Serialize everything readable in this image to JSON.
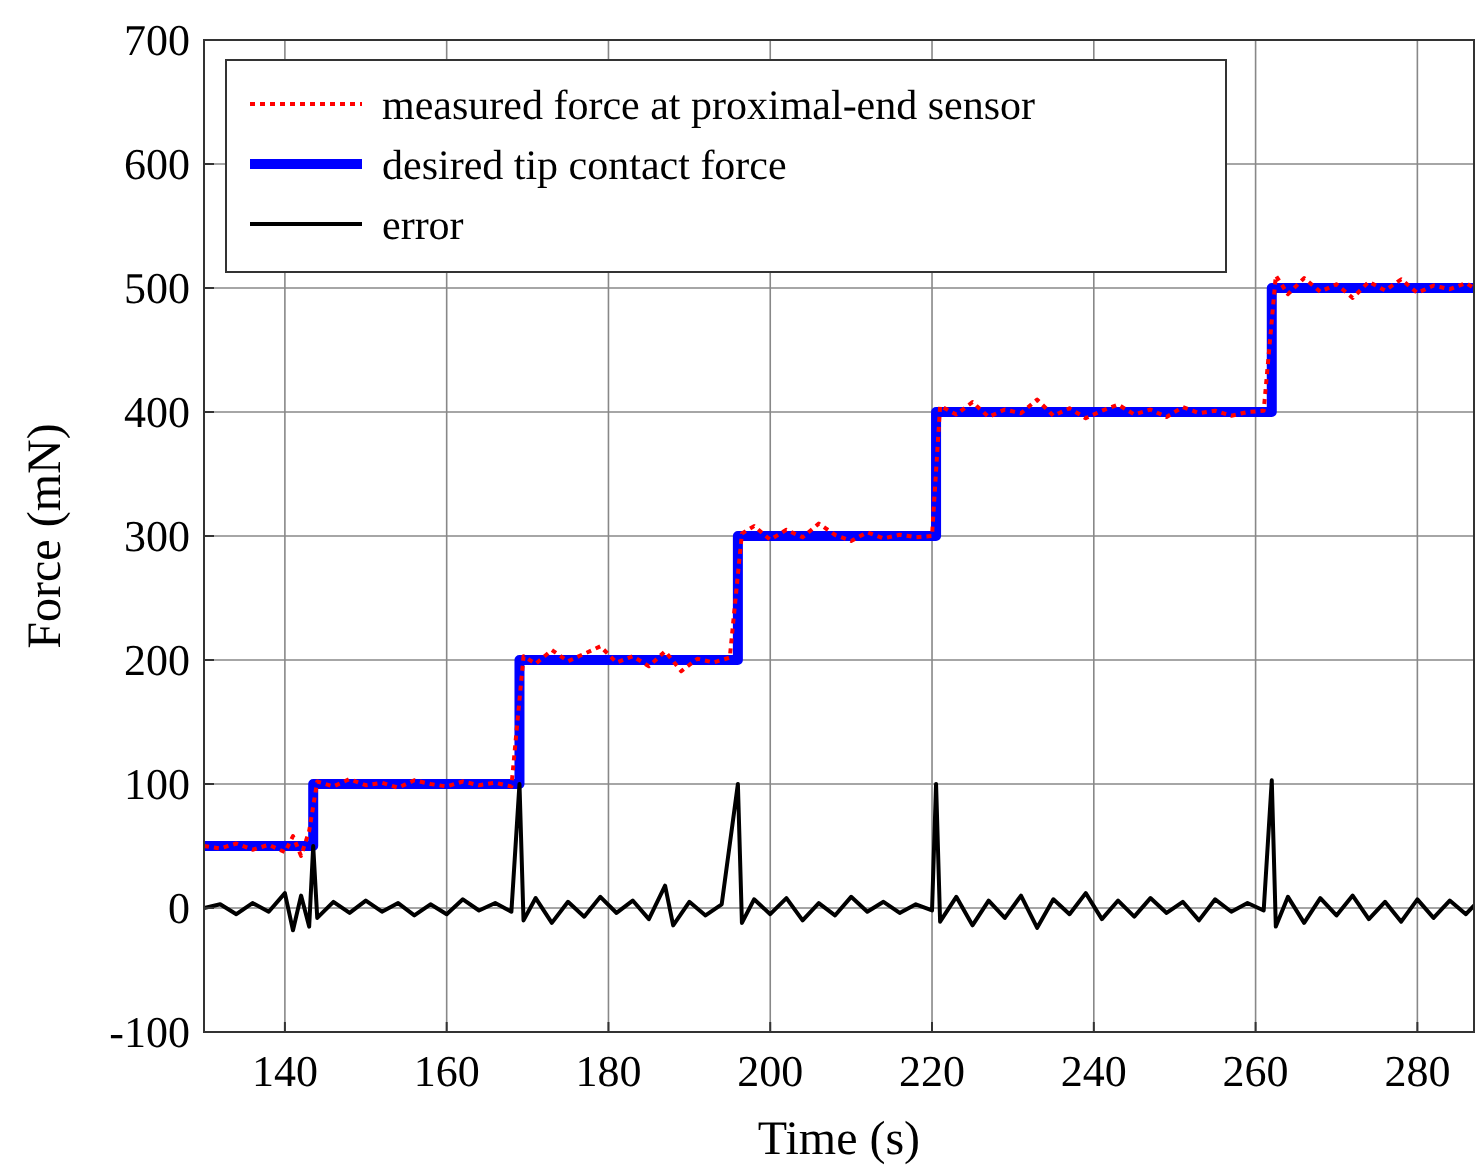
{
  "chart_data": {
    "type": "line",
    "xlabel": "Time (s)",
    "ylabel": "Force (mN)",
    "xlim": [
      130,
      287
    ],
    "xticks": [
      140,
      160,
      180,
      200,
      220,
      240,
      260,
      280
    ],
    "ylim": [
      -100,
      700
    ],
    "yticks": [
      -100,
      0,
      100,
      200,
      300,
      400,
      500,
      600,
      700
    ],
    "grid": true,
    "legend": "top left",
    "marker": "none",
    "series": [
      {
        "name": "measured force at proximal-end sensor",
        "color": "#ff0000",
        "line_style": "dotted",
        "x": [
          130,
          132,
          134,
          136,
          138,
          140,
          141,
          142,
          143,
          144,
          146,
          148,
          150,
          152,
          154,
          156,
          158,
          160,
          162,
          164,
          166,
          168,
          169.5,
          171,
          173,
          175,
          177,
          179,
          181,
          183,
          185,
          187,
          189,
          191,
          193,
          195,
          196.5,
          198,
          200,
          202,
          204,
          206,
          208,
          210,
          212,
          214,
          216,
          218,
          220,
          221,
          223,
          225,
          227,
          229,
          231,
          233,
          235,
          237,
          239,
          241,
          243,
          245,
          247,
          249,
          251,
          253,
          255,
          257,
          259,
          261,
          262.5,
          264,
          266,
          268,
          270,
          272,
          274,
          276,
          278,
          280,
          282,
          284,
          286,
          287
        ],
        "values": [
          50,
          48,
          52,
          47,
          51,
          45,
          58,
          42,
          62,
          102,
          98,
          104,
          99,
          101,
          97,
          103,
          100,
          98,
          102,
          99,
          101,
          98,
          203,
          197,
          208,
          199,
          205,
          211,
          198,
          203,
          195,
          207,
          191,
          201,
          198,
          202,
          302,
          308,
          297,
          305,
          299,
          310,
          301,
          296,
          303,
          298,
          301,
          299,
          300,
          405,
          398,
          408,
          396,
          402,
          399,
          410,
          397,
          403,
          395,
          401,
          406,
          398,
          402,
          396,
          404,
          399,
          401,
          397,
          400,
          401,
          510,
          495,
          508,
          497,
          503,
          492,
          505,
          498,
          507,
          496,
          502,
          499,
          504,
          500
        ]
      },
      {
        "name": "desired tip contact force",
        "color": "#0000ff",
        "type": "step",
        "line_style": "solid",
        "x": [
          130,
          143.5,
          169,
          196,
          220.5,
          262,
          287
        ],
        "values": [
          50,
          100,
          200,
          300,
          400,
          500,
          500
        ]
      },
      {
        "name": "error",
        "color": "#000000",
        "line_style": "solid",
        "x": [
          130,
          132,
          134,
          136,
          138,
          140,
          141,
          142,
          143,
          143.5,
          144,
          146,
          148,
          150,
          152,
          154,
          156,
          158,
          160,
          162,
          164,
          166,
          168,
          169,
          169.5,
          171,
          173,
          175,
          177,
          179,
          181,
          183,
          185,
          187,
          188,
          190,
          192,
          194,
          196,
          196.5,
          198,
          200,
          202,
          204,
          206,
          208,
          210,
          212,
          214,
          216,
          218,
          220,
          220.5,
          221,
          223,
          225,
          227,
          229,
          231,
          233,
          235,
          237,
          239,
          241,
          243,
          245,
          247,
          249,
          251,
          253,
          255,
          257,
          259,
          261,
          262,
          262.5,
          264,
          266,
          268,
          270,
          272,
          274,
          276,
          278,
          280,
          282,
          284,
          286,
          287
        ],
        "values": [
          0,
          3,
          -5,
          4,
          -3,
          12,
          -18,
          10,
          -15,
          50,
          -8,
          5,
          -4,
          6,
          -3,
          4,
          -6,
          3,
          -5,
          7,
          -2,
          4,
          -3,
          100,
          -10,
          8,
          -12,
          5,
          -7,
          9,
          -4,
          6,
          -9,
          18,
          -14,
          5,
          -6,
          3,
          100,
          -12,
          7,
          -5,
          8,
          -10,
          4,
          -6,
          9,
          -3,
          5,
          -4,
          3,
          -2,
          100,
          -11,
          9,
          -14,
          6,
          -8,
          10,
          -16,
          7,
          -5,
          12,
          -9,
          6,
          -7,
          8,
          -4,
          5,
          -10,
          7,
          -3,
          4,
          -2,
          103,
          -15,
          9,
          -12,
          8,
          -6,
          10,
          -9,
          5,
          -11,
          7,
          -8,
          6,
          -5,
          2
        ]
      }
    ]
  }
}
